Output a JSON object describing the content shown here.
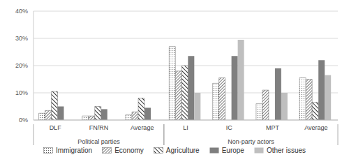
{
  "chart_data": {
    "type": "bar",
    "categories": [
      "DLF",
      "FN/RN",
      "Average",
      "LI",
      "IC",
      "MPT",
      "Average"
    ],
    "category_groups": [
      "Political parties",
      "Political parties",
      "Political parties",
      "Non-party actors",
      "Non-party actors",
      "Non-party actors",
      "Non-party actors"
    ],
    "series": [
      {
        "name": "Immigration",
        "color": "#404040",
        "values": [
          2.5,
          1.5,
          2,
          27,
          13.5,
          6,
          15.5
        ]
      },
      {
        "name": "Economy",
        "color": "#404040",
        "values": [
          3.5,
          1.5,
          3,
          18,
          15.5,
          11,
          15
        ]
      },
      {
        "name": "Agriculture",
        "color": "#303030",
        "values": [
          10.5,
          5,
          8,
          20,
          0,
          0,
          6.5
        ]
      },
      {
        "name": "Europe",
        "color": "#7f7f7f",
        "values": [
          5,
          4,
          4.5,
          23.5,
          23.5,
          19,
          22
        ]
      },
      {
        "name": "Other issues",
        "color": "#bfbfbf",
        "values": [
          0,
          0,
          0,
          10,
          29.5,
          10,
          16.5
        ]
      }
    ],
    "ylim": [
      0,
      40
    ],
    "yticks": [
      {
        "value": 0,
        "label": "0%"
      },
      {
        "value": 10,
        "label": "10%"
      },
      {
        "value": 20,
        "label": "20%"
      },
      {
        "value": 30,
        "label": "30%"
      },
      {
        "value": 40,
        "label": "40%"
      }
    ],
    "grid": true
  }
}
